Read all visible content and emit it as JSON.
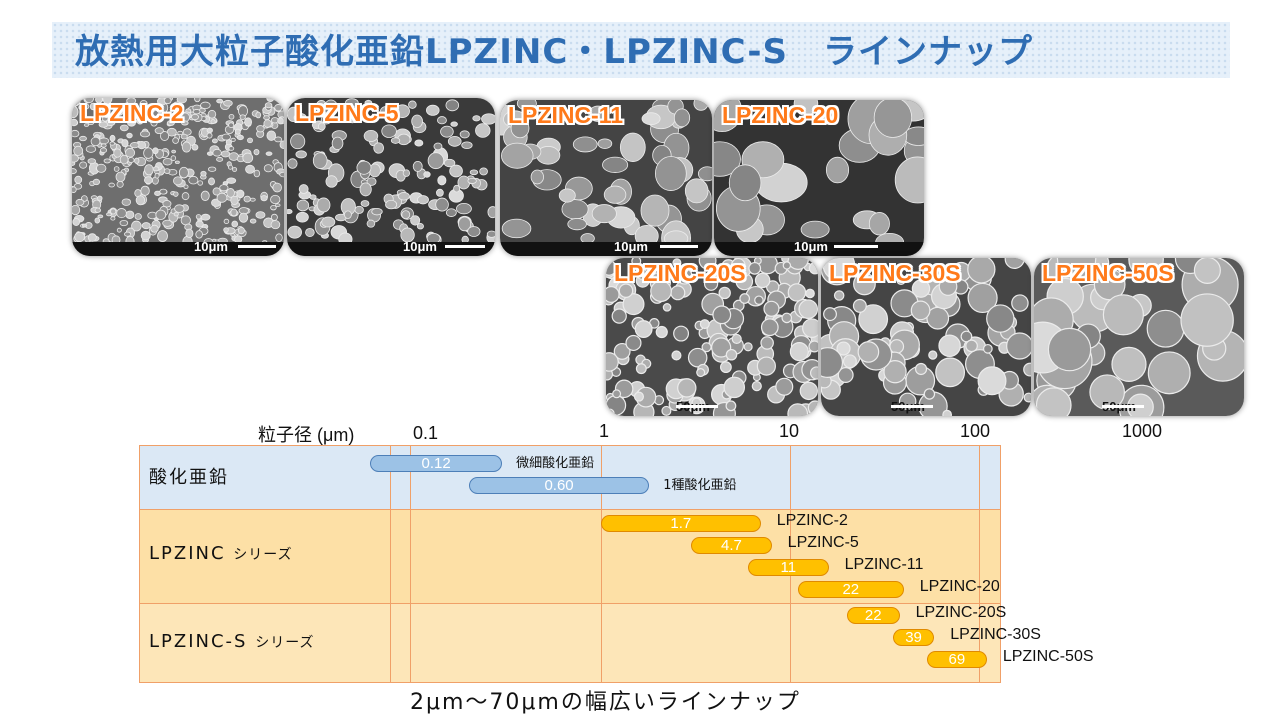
{
  "title": "放熱用大粒子酸化亜鉛LPZINC・LPZINC-S　ラインナップ",
  "photos": [
    {
      "label": "LPZINC-2",
      "scale": "10μm"
    },
    {
      "label": "LPZINC-5",
      "scale": "10μm"
    },
    {
      "label": "LPZINC-11",
      "scale": "10μm"
    },
    {
      "label": "LPZINC-20",
      "scale": "10μm"
    },
    {
      "label": "LPZINC-20S",
      "scale": "50μm"
    },
    {
      "label": "LPZINC-30S",
      "scale": "50μm"
    },
    {
      "label": "LPZINC-50S",
      "scale": "50μm"
    }
  ],
  "axis": {
    "title": "粒子径 (μm)",
    "ticks": [
      "0.1",
      "1",
      "10",
      "100",
      "1000"
    ]
  },
  "rows": [
    {
      "label": "酸化亜鉛",
      "suffix": ""
    },
    {
      "label": "LPZINC",
      "suffix": "シリーズ"
    },
    {
      "label": "LPZINC-S",
      "suffix": "シリーズ"
    }
  ],
  "colors": {
    "blue_row": "#dbe8f5",
    "orange_row": "#fde0a6",
    "orange_row2": "#fde6b8",
    "pill_blue": "#9cc2e6",
    "pill_orange": "#ffc000",
    "title": "#2f6db3",
    "label_orange": "#ff7a1a"
  },
  "chart_data": {
    "type": "range-bar",
    "x_scale": "log",
    "xlim": [
      0.1,
      1000
    ],
    "series": [
      {
        "row": 0,
        "value": "0.12",
        "label": "微細酸化亜鉛",
        "range": [
          0.06,
          0.3
        ]
      },
      {
        "row": 0,
        "value": "0.60",
        "label": "1種酸化亜鉛",
        "range": [
          0.2,
          1.8
        ]
      },
      {
        "row": 1,
        "value": "1.7",
        "label": "LPZINC-2",
        "range": [
          1,
          7
        ]
      },
      {
        "row": 1,
        "value": "4.7",
        "label": "LPZINC-5",
        "range": [
          3,
          8
        ]
      },
      {
        "row": 1,
        "value": "11",
        "label": "LPZINC-11",
        "range": [
          6,
          16
        ]
      },
      {
        "row": 1,
        "value": "22",
        "label": "LPZINC-20",
        "range": [
          11,
          40
        ]
      },
      {
        "row": 2,
        "value": "22",
        "label": "LPZINC-20S",
        "range": [
          20,
          38
        ]
      },
      {
        "row": 2,
        "value": "39",
        "label": "LPZINC-30S",
        "range": [
          35,
          58
        ]
      },
      {
        "row": 2,
        "value": "69",
        "label": "LPZINC-50S",
        "range": [
          53,
          110
        ]
      }
    ]
  },
  "footer": "2μm～70μmの幅広いラインナップ"
}
